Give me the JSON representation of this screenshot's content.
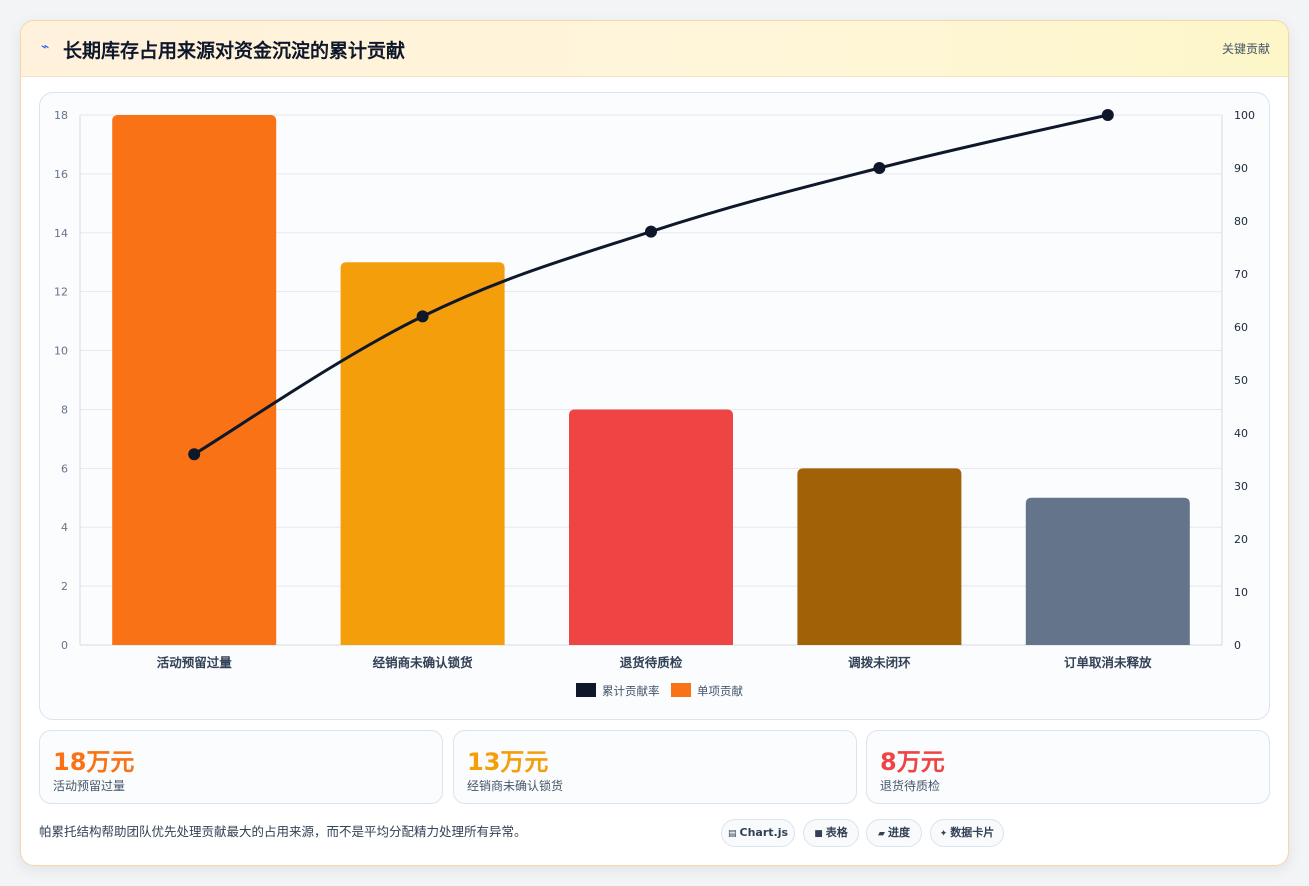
{
  "header": {
    "icon": "lightning-icon",
    "title": "长期库存占用来源对资金沉淀的累计贡献",
    "tag": "关键贡献"
  },
  "chart_data": {
    "type": "bar",
    "categories": [
      "活动预留过量",
      "经销商未确认锁货",
      "退货待质检",
      "调拨未闭环",
      "订单取消未释放"
    ],
    "series": [
      {
        "name": "单项贡献",
        "type": "bar",
        "axis": "left",
        "values": [
          18,
          13,
          8,
          6,
          5
        ],
        "colors": [
          "#f97316",
          "#f59e0b",
          "#ef4444",
          "#a16207",
          "#64748b"
        ]
      },
      {
        "name": "累计贡献率",
        "type": "line",
        "axis": "right",
        "values": [
          36,
          62,
          78,
          90,
          100
        ],
        "color": "#0f172a"
      }
    ],
    "y_left": {
      "min": 0,
      "max": 18,
      "step": 2,
      "ticks": [
        "0",
        "2",
        "4",
        "6",
        "8",
        "10",
        "12",
        "14",
        "16",
        "18"
      ]
    },
    "y_right": {
      "min": 0,
      "max": 100,
      "step": 10,
      "ticks": [
        "0",
        "10",
        "20",
        "30",
        "40",
        "50",
        "60",
        "70",
        "80",
        "90",
        "100"
      ]
    },
    "legend": {
      "position": "bottom",
      "items": [
        {
          "label": "累计贡献率",
          "color": "#0f172a"
        },
        {
          "label": "单项贡献",
          "color": "#f97316"
        }
      ]
    },
    "grid": true
  },
  "stats": [
    {
      "value": "18万元",
      "label": "活动预留过量",
      "color": "#f97316"
    },
    {
      "value": "13万元",
      "label": "经销商未确认锁货",
      "color": "#f59e0b"
    },
    {
      "value": "8万元",
      "label": "退货待质检",
      "color": "#ef4444"
    }
  ],
  "footer": {
    "note": "帕累托结构帮助团队优先处理贡献最大的占用来源，而不是平均分配精力处理所有异常。"
  },
  "pills": [
    {
      "icon": "chart-icon",
      "glyph": "▤",
      "label": "Chart.js"
    },
    {
      "icon": "table-icon",
      "glyph": "■",
      "label": "表格"
    },
    {
      "icon": "progress-icon",
      "glyph": "▰",
      "label": "进度"
    },
    {
      "icon": "sparkle-icon",
      "glyph": "✦",
      "label": "数据卡片"
    }
  ]
}
